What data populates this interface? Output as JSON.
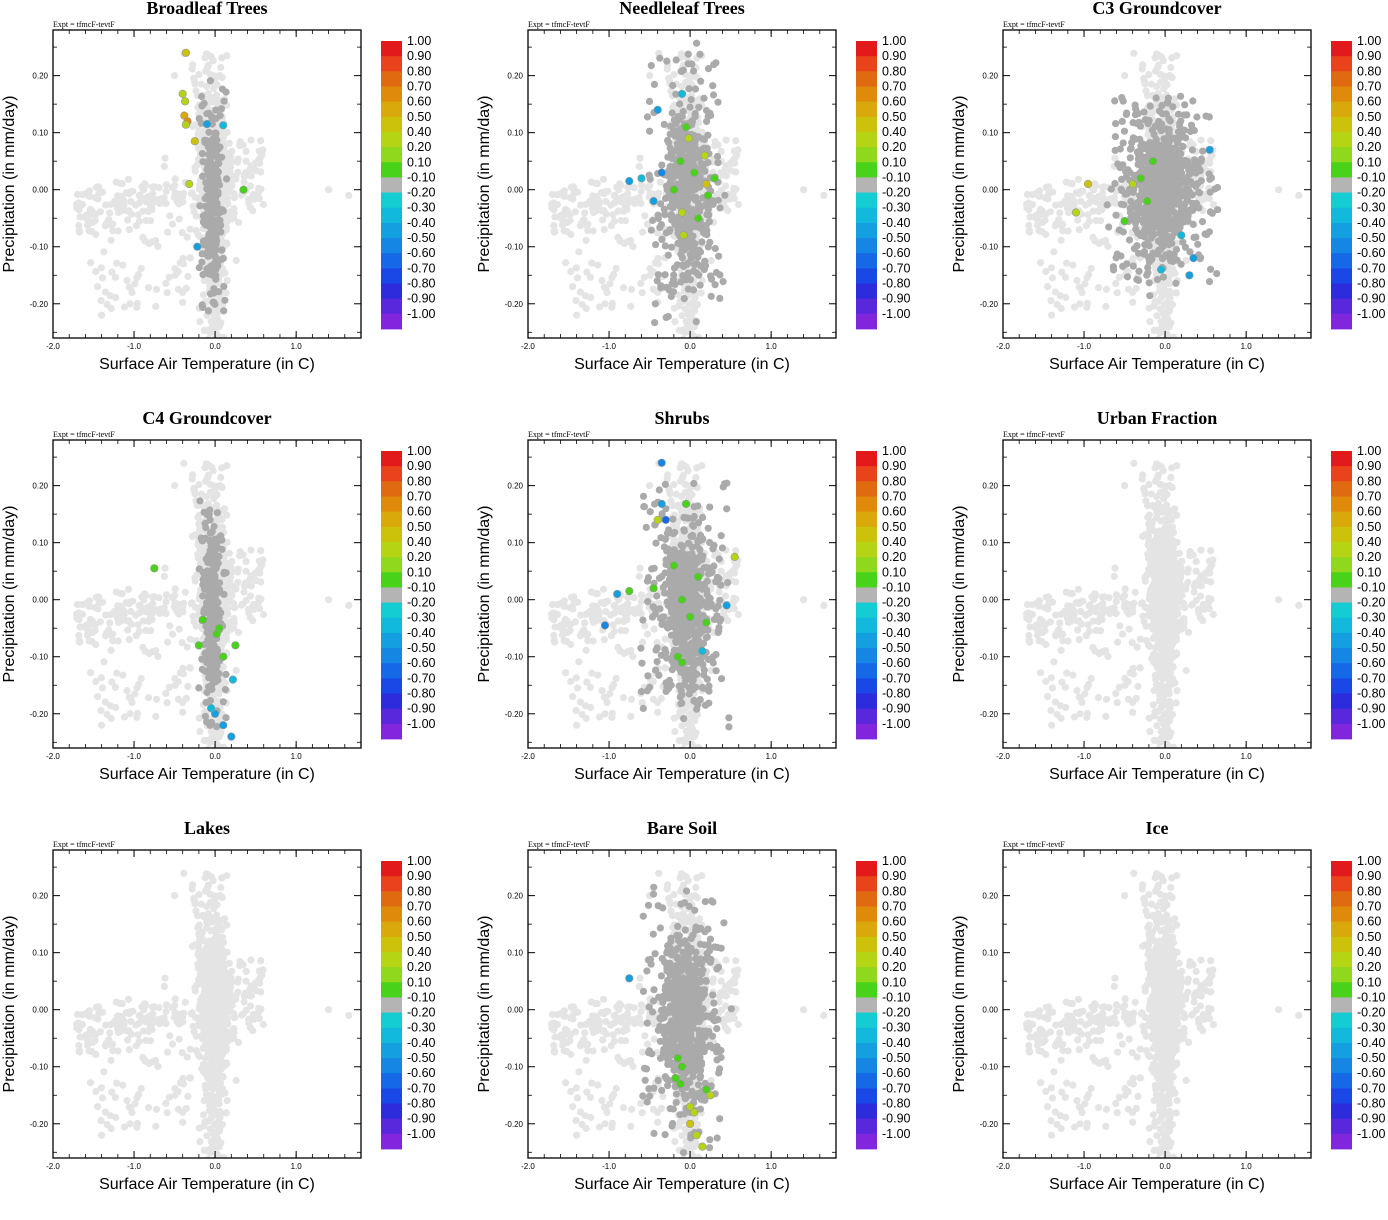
{
  "figure": {
    "expt_label": "Expt = tfmcF-tevtF",
    "xlabel": "Surface Air Temperature (in C)",
    "ylabel": "Precipitation (in mm/day)",
    "x_tick_labels": [
      "-2.0",
      "-1.0",
      "0.0",
      "1.0"
    ],
    "y_tick_labels": [
      "0.20",
      "0.10",
      "0.00",
      "-0.10",
      "-0.20"
    ]
  },
  "colorbar": {
    "labels": [
      "1.00",
      "0.90",
      "0.80",
      "0.70",
      "0.60",
      "0.50",
      "0.40",
      "0.20",
      "0.10",
      "-0.10",
      "-0.20",
      "-0.30",
      "-0.40",
      "-0.50",
      "-0.60",
      "-0.70",
      "-0.80",
      "-0.90",
      "-1.00"
    ],
    "colors": [
      "#e31a1c",
      "#e8431a",
      "#e06a10",
      "#df8a0a",
      "#d9a80a",
      "#ccc20c",
      "#b4d414",
      "#8fd81e",
      "#48d21a",
      "#b4b4b4",
      "#14cdd2",
      "#12b9dc",
      "#14a0e0",
      "#1586e3",
      "#1568e6",
      "#1a48e6",
      "#2c2cdc",
      "#5a28dc",
      "#8226de"
    ]
  },
  "colors": {
    "background_points": "#e4e4e4",
    "pft_points": "#aaaaaa"
  },
  "chart_data": [
    {
      "type": "scatter",
      "title": "Broadleaf Trees",
      "xlim": [
        -2.0,
        1.8
      ],
      "ylim": [
        -0.26,
        0.28
      ],
      "xlabel": "Surface Air Temperature (in C)",
      "ylabel": "Precipitation (in mm/day)",
      "color_scale": [
        -1.0,
        1.0
      ],
      "pft_cluster": "center",
      "highlights": [
        {
          "x": -0.36,
          "y": 0.24,
          "v": 0.45
        },
        {
          "x": -0.4,
          "y": 0.168,
          "v": 0.3
        },
        {
          "x": -0.37,
          "y": 0.155,
          "v": 0.35
        },
        {
          "x": -0.38,
          "y": 0.13,
          "v": 0.55
        },
        {
          "x": -0.34,
          "y": 0.12,
          "v": 0.65
        },
        {
          "x": -0.36,
          "y": 0.114,
          "v": 0.2
        },
        {
          "x": -0.25,
          "y": 0.085,
          "v": 0.4
        },
        {
          "x": -0.1,
          "y": 0.115,
          "v": -0.3
        },
        {
          "x": 0.1,
          "y": 0.113,
          "v": -0.25
        },
        {
          "x": -0.32,
          "y": 0.01,
          "v": 0.25
        },
        {
          "x": 0.35,
          "y": 0.0,
          "v": 0.15
        },
        {
          "x": -0.22,
          "y": -0.1,
          "v": -0.3
        }
      ]
    },
    {
      "type": "scatter",
      "title": "Needleleaf Trees",
      "xlim": [
        -2.0,
        1.8
      ],
      "ylim": [
        -0.26,
        0.28
      ],
      "xlabel": "Surface Air Temperature (in C)",
      "ylabel": "Precipitation (in mm/day)",
      "color_scale": [
        -1.0,
        1.0
      ],
      "pft_cluster": "center-tall",
      "highlights": [
        {
          "x": -0.4,
          "y": 0.14,
          "v": -0.35
        },
        {
          "x": -0.1,
          "y": 0.168,
          "v": -0.25
        },
        {
          "x": -0.05,
          "y": 0.11,
          "v": 0.15
        },
        {
          "x": -0.02,
          "y": 0.09,
          "v": 0.2
        },
        {
          "x": 0.18,
          "y": 0.06,
          "v": 0.3
        },
        {
          "x": -0.12,
          "y": 0.05,
          "v": 0.15
        },
        {
          "x": 0.05,
          "y": 0.03,
          "v": 0.18
        },
        {
          "x": 0.2,
          "y": 0.01,
          "v": 0.4
        },
        {
          "x": 0.3,
          "y": 0.02,
          "v": 0.15
        },
        {
          "x": -0.75,
          "y": 0.015,
          "v": -0.3
        },
        {
          "x": -0.6,
          "y": 0.02,
          "v": -0.25
        },
        {
          "x": -0.35,
          "y": 0.03,
          "v": -0.4
        },
        {
          "x": -0.45,
          "y": -0.02,
          "v": -0.3
        },
        {
          "x": -0.1,
          "y": -0.04,
          "v": 0.2
        },
        {
          "x": 0.1,
          "y": -0.05,
          "v": 0.12
        },
        {
          "x": -0.08,
          "y": -0.08,
          "v": 0.35
        },
        {
          "x": 0.22,
          "y": -0.01,
          "v": 0.14
        },
        {
          "x": -0.2,
          "y": 0.0,
          "v": 0.11
        }
      ]
    },
    {
      "type": "scatter",
      "title": "C3 Groundcover",
      "xlim": [
        -2.0,
        1.8
      ],
      "ylim": [
        -0.26,
        0.28
      ],
      "xlabel": "Surface Air Temperature (in C)",
      "ylabel": "Precipitation (in mm/day)",
      "color_scale": [
        -1.0,
        1.0
      ],
      "pft_cluster": "wide",
      "highlights": [
        {
          "x": -0.95,
          "y": 0.01,
          "v": 0.45
        },
        {
          "x": -1.1,
          "y": -0.04,
          "v": 0.3
        },
        {
          "x": -0.5,
          "y": -0.055,
          "v": 0.12
        },
        {
          "x": -0.3,
          "y": 0.02,
          "v": 0.15
        },
        {
          "x": -0.4,
          "y": 0.01,
          "v": 0.2
        },
        {
          "x": -0.15,
          "y": 0.05,
          "v": 0.14
        },
        {
          "x": -0.22,
          "y": -0.02,
          "v": 0.13
        },
        {
          "x": 0.2,
          "y": -0.08,
          "v": -0.25
        },
        {
          "x": 0.35,
          "y": -0.12,
          "v": -0.3
        },
        {
          "x": 0.3,
          "y": -0.15,
          "v": -0.35
        },
        {
          "x": 0.55,
          "y": 0.07,
          "v": -0.3
        },
        {
          "x": -0.05,
          "y": -0.14,
          "v": -0.2
        }
      ]
    },
    {
      "type": "scatter",
      "title": "C4 Groundcover",
      "xlim": [
        -2.0,
        1.8
      ],
      "ylim": [
        -0.26,
        0.28
      ],
      "xlabel": "Surface Air Temperature (in C)",
      "ylabel": "Precipitation (in mm/day)",
      "color_scale": [
        -1.0,
        1.0
      ],
      "pft_cluster": "center",
      "highlights": [
        {
          "x": -0.75,
          "y": 0.055,
          "v": 0.18
        },
        {
          "x": -0.15,
          "y": -0.035,
          "v": 0.13
        },
        {
          "x": 0.05,
          "y": -0.05,
          "v": 0.15
        },
        {
          "x": 0.02,
          "y": -0.06,
          "v": 0.12
        },
        {
          "x": -0.2,
          "y": -0.08,
          "v": 0.14
        },
        {
          "x": 0.1,
          "y": -0.1,
          "v": 0.15
        },
        {
          "x": 0.25,
          "y": -0.08,
          "v": 0.12
        },
        {
          "x": 0.22,
          "y": -0.14,
          "v": -0.25
        },
        {
          "x": 0.0,
          "y": -0.2,
          "v": -0.3
        },
        {
          "x": 0.1,
          "y": -0.22,
          "v": -0.35
        },
        {
          "x": 0.2,
          "y": -0.24,
          "v": -0.3
        },
        {
          "x": -0.05,
          "y": -0.19,
          "v": -0.25
        }
      ]
    },
    {
      "type": "scatter",
      "title": "Shrubs",
      "xlim": [
        -2.0,
        1.8
      ],
      "ylim": [
        -0.26,
        0.28
      ],
      "xlabel": "Surface Air Temperature (in C)",
      "ylabel": "Precipitation (in mm/day)",
      "color_scale": [
        -1.0,
        1.0
      ],
      "pft_cluster": "center-wide",
      "highlights": [
        {
          "x": -0.35,
          "y": 0.24,
          "v": -0.45
        },
        {
          "x": -0.35,
          "y": 0.168,
          "v": -0.35
        },
        {
          "x": -0.3,
          "y": 0.14,
          "v": -0.5
        },
        {
          "x": -0.4,
          "y": 0.14,
          "v": 0.35
        },
        {
          "x": -0.05,
          "y": 0.168,
          "v": 0.15
        },
        {
          "x": 0.55,
          "y": 0.075,
          "v": 0.35
        },
        {
          "x": -0.9,
          "y": 0.01,
          "v": -0.35
        },
        {
          "x": -0.75,
          "y": 0.015,
          "v": 0.15
        },
        {
          "x": -1.05,
          "y": -0.045,
          "v": -0.4
        },
        {
          "x": -0.2,
          "y": 0.06,
          "v": 0.15
        },
        {
          "x": 0.1,
          "y": 0.04,
          "v": 0.12
        },
        {
          "x": -0.1,
          "y": 0.0,
          "v": 0.14
        },
        {
          "x": -0.15,
          "y": -0.1,
          "v": 0.14
        },
        {
          "x": -0.1,
          "y": -0.11,
          "v": 0.15
        },
        {
          "x": 0.0,
          "y": -0.03,
          "v": 0.12
        },
        {
          "x": 0.2,
          "y": -0.04,
          "v": 0.16
        },
        {
          "x": 0.45,
          "y": -0.01,
          "v": -0.3
        },
        {
          "x": 0.15,
          "y": -0.09,
          "v": -0.2
        },
        {
          "x": -0.45,
          "y": 0.02,
          "v": 0.12
        }
      ]
    },
    {
      "type": "scatter",
      "title": "Urban Fraction",
      "xlim": [
        -2.0,
        1.8
      ],
      "ylim": [
        -0.26,
        0.28
      ],
      "xlabel": "Surface Air Temperature (in C)",
      "ylabel": "Precipitation (in mm/day)",
      "color_scale": [
        -1.0,
        1.0
      ],
      "pft_cluster": "none",
      "highlights": []
    },
    {
      "type": "scatter",
      "title": "Lakes",
      "xlim": [
        -2.0,
        1.8
      ],
      "ylim": [
        -0.26,
        0.28
      ],
      "xlabel": "Surface Air Temperature (in C)",
      "ylabel": "Precipitation (in mm/day)",
      "color_scale": [
        -1.0,
        1.0
      ],
      "pft_cluster": "none",
      "highlights": []
    },
    {
      "type": "scatter",
      "title": "Bare Soil",
      "xlim": [
        -2.0,
        1.8
      ],
      "ylim": [
        -0.26,
        0.28
      ],
      "xlabel": "Surface Air Temperature (in C)",
      "ylabel": "Precipitation (in mm/day)",
      "color_scale": [
        -1.0,
        1.0
      ],
      "pft_cluster": "center-wide",
      "highlights": [
        {
          "x": -0.75,
          "y": 0.055,
          "v": -0.3
        },
        {
          "x": -0.15,
          "y": -0.085,
          "v": 0.13
        },
        {
          "x": -0.1,
          "y": -0.1,
          "v": 0.15
        },
        {
          "x": -0.18,
          "y": -0.12,
          "v": 0.14
        },
        {
          "x": -0.12,
          "y": -0.13,
          "v": 0.12
        },
        {
          "x": 0.2,
          "y": -0.14,
          "v": 0.15
        },
        {
          "x": 0.25,
          "y": -0.15,
          "v": 0.25
        },
        {
          "x": 0.0,
          "y": -0.17,
          "v": 0.3
        },
        {
          "x": 0.05,
          "y": -0.18,
          "v": 0.35
        },
        {
          "x": 0.0,
          "y": -0.2,
          "v": 0.4
        },
        {
          "x": 0.08,
          "y": -0.22,
          "v": 0.35
        },
        {
          "x": 0.15,
          "y": -0.24,
          "v": 0.2
        }
      ]
    },
    {
      "type": "scatter",
      "title": "Ice",
      "xlim": [
        -2.0,
        1.8
      ],
      "ylim": [
        -0.26,
        0.28
      ],
      "xlabel": "Surface Air Temperature (in C)",
      "ylabel": "Precipitation (in mm/day)",
      "color_scale": [
        -1.0,
        1.0
      ],
      "pft_cluster": "none",
      "highlights": []
    }
  ]
}
